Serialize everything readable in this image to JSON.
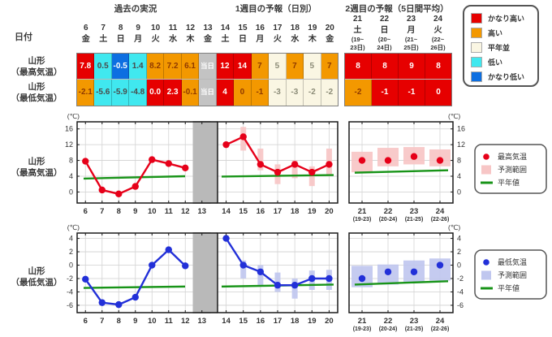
{
  "header": {
    "sections": [
      {
        "label": "過去の実況"
      },
      {
        "label": "1週目の予報（日別）"
      },
      {
        "label": "2週目の予報（5日間平均）"
      }
    ],
    "date_label": "日付"
  },
  "levels": {
    "vh": {
      "label": "かなり高い",
      "bg": "#e60000",
      "fg": "#ffffff"
    },
    "h": {
      "label": "高い",
      "bg": "#f39800",
      "fg": "#8f3a00"
    },
    "n": {
      "label": "平年並",
      "bg": "#faf6e3",
      "fg": "#8c8c78"
    },
    "l": {
      "label": "低い",
      "bg": "#40e8ef",
      "fg": "#4a4a4a"
    },
    "vl": {
      "label": "かなり低い",
      "bg": "#0d6fe1",
      "fg": "#ffffff"
    },
    "today": {
      "label": "当日",
      "bg": "#c3c3c3",
      "fg": "#ffffff"
    }
  },
  "anomaly_legend_order": [
    "vh",
    "h",
    "n",
    "l",
    "vl"
  ],
  "table": {
    "days": [
      {
        "num": "6",
        "wd": "金"
      },
      {
        "num": "7",
        "wd": "土"
      },
      {
        "num": "8",
        "wd": "日"
      },
      {
        "num": "9",
        "wd": "月"
      },
      {
        "num": "10",
        "wd": "火"
      },
      {
        "num": "11",
        "wd": "水"
      },
      {
        "num": "12",
        "wd": "木"
      },
      {
        "num": "13",
        "wd": "金"
      },
      {
        "num": "14",
        "wd": "土"
      },
      {
        "num": "15",
        "wd": "日"
      },
      {
        "num": "16",
        "wd": "月"
      },
      {
        "num": "17",
        "wd": "火"
      },
      {
        "num": "18",
        "wd": "水"
      },
      {
        "num": "19",
        "wd": "木"
      },
      {
        "num": "20",
        "wd": "金"
      }
    ],
    "week2_days": [
      {
        "num": "21",
        "wd": "土",
        "sub1": "(19~",
        "sub2": "23日)"
      },
      {
        "num": "22",
        "wd": "日",
        "sub1": "(20~",
        "sub2": "24日)"
      },
      {
        "num": "23",
        "wd": "月",
        "sub1": "(21~",
        "sub2": "25日)"
      },
      {
        "num": "24",
        "wd": "火",
        "sub1": "(22~",
        "sub2": "26日)"
      }
    ],
    "rows": [
      {
        "label": [
          "山形",
          "（最高気温）"
        ],
        "cells": [
          {
            "v": "7.8",
            "lv": "vh"
          },
          {
            "v": "0.5",
            "lv": "l"
          },
          {
            "v": "-0.5",
            "lv": "vl"
          },
          {
            "v": "1.4",
            "lv": "l"
          },
          {
            "v": "8.2",
            "lv": "h"
          },
          {
            "v": "7.2",
            "lv": "h"
          },
          {
            "v": "6.1",
            "lv": "h"
          },
          {
            "v": "当日",
            "lv": "today"
          },
          {
            "v": "12",
            "lv": "vh"
          },
          {
            "v": "14",
            "lv": "vh"
          },
          {
            "v": "7",
            "lv": "h"
          },
          {
            "v": "5",
            "lv": "n"
          },
          {
            "v": "7",
            "lv": "h"
          },
          {
            "v": "5",
            "lv": "n"
          },
          {
            "v": "7",
            "lv": "h"
          }
        ],
        "week2_cells": [
          {
            "v": "8",
            "lv": "vh"
          },
          {
            "v": "8",
            "lv": "vh"
          },
          {
            "v": "9",
            "lv": "vh"
          },
          {
            "v": "8",
            "lv": "vh"
          }
        ]
      },
      {
        "label": [
          "山形",
          "（最低気温）"
        ],
        "cells": [
          {
            "v": "-2.1",
            "lv": "h"
          },
          {
            "v": "-5.6",
            "lv": "l"
          },
          {
            "v": "-5.9",
            "lv": "l"
          },
          {
            "v": "-4.8",
            "lv": "l"
          },
          {
            "v": "0.0",
            "lv": "vh"
          },
          {
            "v": "2.3",
            "lv": "vh"
          },
          {
            "v": "-0.1",
            "lv": "h"
          },
          {
            "v": "当日",
            "lv": "today"
          },
          {
            "v": "4",
            "lv": "vh"
          },
          {
            "v": "0",
            "lv": "h"
          },
          {
            "v": "-1",
            "lv": "h"
          },
          {
            "v": "-3",
            "lv": "n"
          },
          {
            "v": "-3",
            "lv": "n"
          },
          {
            "v": "-2",
            "lv": "n"
          },
          {
            "v": "-2",
            "lv": "n"
          }
        ],
        "week2_cells": [
          {
            "v": "-2",
            "lv": "h"
          },
          {
            "v": "-1",
            "lv": "vh"
          },
          {
            "v": "-1",
            "lv": "vh"
          },
          {
            "v": "0",
            "lv": "vh"
          }
        ]
      }
    ]
  },
  "chart_data": [
    {
      "type": "line",
      "name": "max-temp",
      "row_label": [
        "山形",
        "（最高気温）"
      ],
      "unit": "(℃)",
      "y_ticks": [
        16,
        12,
        8,
        4,
        0
      ],
      "y_range": [
        -2.8,
        17.8
      ],
      "colors": {
        "point": "#e60019",
        "range": "#f7c6c6",
        "normal": "#189418"
      },
      "legend": [
        {
          "symbol": "dot",
          "label": "最高気温"
        },
        {
          "symbol": "box",
          "label": "予測範囲"
        },
        {
          "symbol": "line",
          "label": "平年値"
        }
      ],
      "panels": [
        {
          "x_labels": [
            "6",
            "7",
            "8",
            "9",
            "10",
            "11",
            "12",
            "13"
          ],
          "points": [
            7.8,
            0.5,
            -0.5,
            1.4,
            8.2,
            7.2,
            6.1,
            null
          ],
          "connect": true,
          "normal": [
            3.4,
            4.0
          ],
          "gray_last": true
        },
        {
          "x_labels": [
            "14",
            "15",
            "16",
            "17",
            "18",
            "19",
            "20"
          ],
          "points": [
            12,
            14,
            7,
            5,
            7,
            5,
            7
          ],
          "ranges": [
            null,
            [
              10.5,
              16.5
            ],
            [
              5.5,
              11
            ],
            [
              2,
              7
            ],
            [
              3.5,
              8
            ],
            [
              1.5,
              6.5
            ],
            [
              4.5,
              11
            ]
          ],
          "connect": true,
          "normal": [
            3.9,
            4.3
          ]
        },
        {
          "x_labels": [
            "21",
            "22",
            "23",
            "24"
          ],
          "x_sublabels": [
            "(19-23)",
            "(20-24)",
            "(21-25)",
            "(22-26)"
          ],
          "points": [
            8,
            8,
            9,
            8
          ],
          "ranges": [
            [
              5,
              10.2
            ],
            [
              6.5,
              11.2
            ],
            [
              7,
              11.4
            ],
            [
              6.5,
              10.8
            ]
          ],
          "connect": false,
          "normal": [
            4.9,
            5.5
          ],
          "right_axis": true,
          "wide_ranges": true
        }
      ]
    },
    {
      "type": "line",
      "name": "min-temp",
      "row_label": [
        "山形",
        "（最低気温）"
      ],
      "unit": "(℃)",
      "y_ticks": [
        4,
        2,
        0,
        -2,
        -4,
        -6
      ],
      "y_range": [
        -7.1,
        4.8
      ],
      "colors": {
        "point": "#2230d8",
        "range": "#c0c7ef",
        "normal": "#189418"
      },
      "legend": [
        {
          "symbol": "dot",
          "label": "最低気温"
        },
        {
          "symbol": "box",
          "label": "予測範囲"
        },
        {
          "symbol": "line",
          "label": "平年値"
        }
      ],
      "panels": [
        {
          "x_labels": [
            "6",
            "7",
            "8",
            "9",
            "10",
            "11",
            "12",
            "13"
          ],
          "points": [
            -2.1,
            -5.6,
            -5.9,
            -4.8,
            0.0,
            2.3,
            -0.1,
            null
          ],
          "connect": true,
          "normal": [
            -3.4,
            -3.2
          ],
          "gray_last": true
        },
        {
          "x_labels": [
            "14",
            "15",
            "16",
            "17",
            "18",
            "19",
            "20"
          ],
          "points": [
            4,
            0,
            -1,
            -3,
            -3,
            -2,
            -2
          ],
          "ranges": [
            null,
            [
              -2,
              0.7
            ],
            [
              -3,
              0
            ],
            [
              -4,
              -1.1
            ],
            [
              -5,
              -2
            ],
            [
              -3.7,
              -0.8
            ],
            [
              -3.7,
              -0.7
            ]
          ],
          "connect": true,
          "normal": [
            -3.2,
            -2.9
          ]
        },
        {
          "x_labels": [
            "21",
            "22",
            "23",
            "24"
          ],
          "x_sublabels": [
            "(19-23)",
            "(20-24)",
            "(21-25)",
            "(22-26)"
          ],
          "points": [
            -2,
            -1,
            -1,
            0
          ],
          "ranges": [
            [
              -3.3,
              -0.1
            ],
            [
              -2.9,
              0.1
            ],
            [
              -2.5,
              0.7
            ],
            [
              -2.3,
              1.0
            ]
          ],
          "connect": false,
          "normal": [
            -2.9,
            -2.4
          ],
          "right_axis": true,
          "wide_ranges": true
        }
      ]
    }
  ]
}
